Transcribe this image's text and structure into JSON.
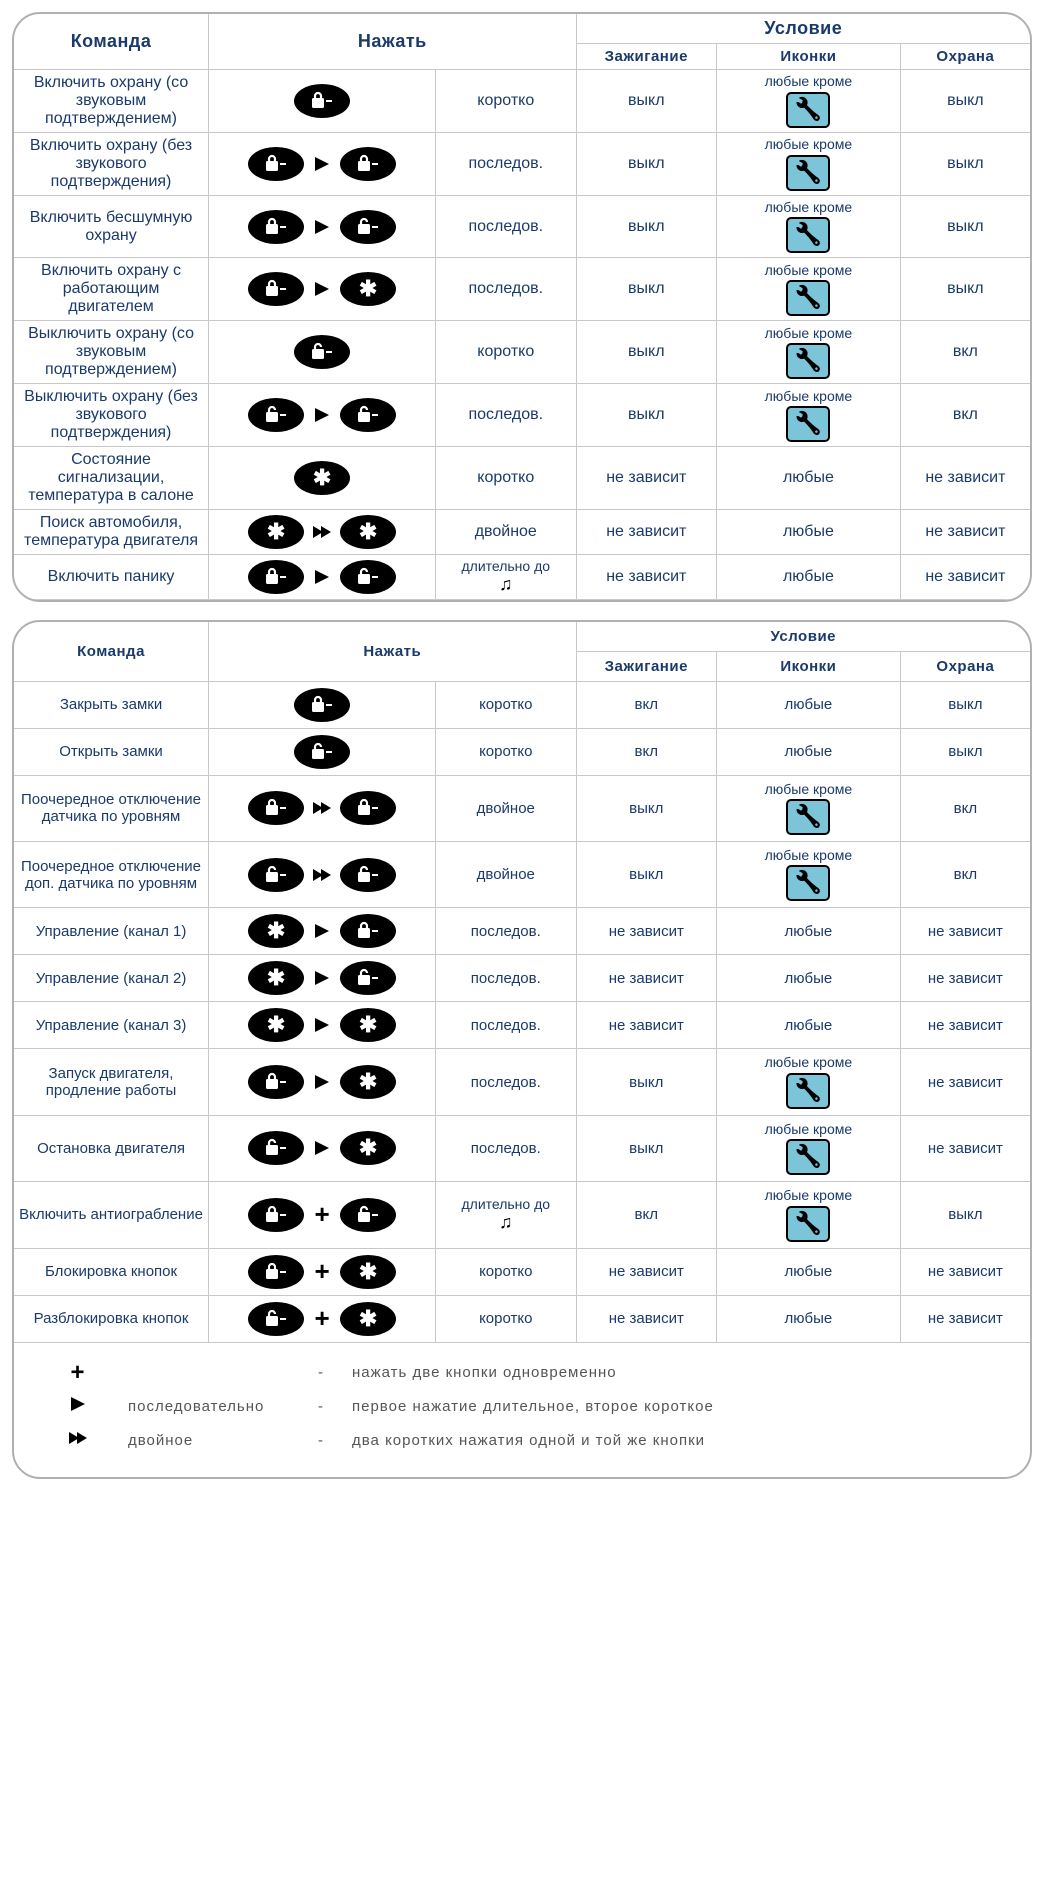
{
  "colors": {
    "border": "#b0b0b0",
    "grid": "#c8c8c8",
    "text": "#1a3a6a",
    "badge_bg": "#7cc5d9",
    "badge_border": "#000000"
  },
  "headers": {
    "command": "Команда",
    "press": "Нажать",
    "condition": "Условие",
    "ignition": "Зажигание",
    "icons": "Иконки",
    "guard": "Охрана"
  },
  "glyphs": {
    "lock": "⊡",
    "unlock": "🔓",
    "star": "✱",
    "plus": "+",
    "note": "♫"
  },
  "table1": {
    "rows": [
      {
        "command": "Включить охрану (со звуковым подтверждением)",
        "buttons": [
          {
            "g": "lock"
          }
        ],
        "sep": null,
        "duration": "коротко",
        "ignition": "выкл",
        "icons": "any_except_wrench",
        "guard": "выкл"
      },
      {
        "command": "Включить охрану (без звукового подтверждения)",
        "buttons": [
          {
            "g": "lock"
          },
          {
            "g": "lock"
          }
        ],
        "sep": "seq",
        "duration": "последов.",
        "ignition": "выкл",
        "icons": "any_except_wrench",
        "guard": "выкл"
      },
      {
        "command": "Включить бесшумную охрану",
        "buttons": [
          {
            "g": "lock"
          },
          {
            "g": "unlock"
          }
        ],
        "sep": "seq",
        "duration": "последов.",
        "ignition": "выкл",
        "icons": "any_except_wrench",
        "guard": "выкл"
      },
      {
        "command": "Включить охрану с работающим двигателем",
        "buttons": [
          {
            "g": "lock"
          },
          {
            "g": "star"
          }
        ],
        "sep": "seq",
        "duration": "последов.",
        "ignition": "выкл",
        "icons": "any_except_wrench",
        "guard": "выкл"
      },
      {
        "command": "Выключить охрану (со звуковым подтверждением)",
        "buttons": [
          {
            "g": "unlock"
          }
        ],
        "sep": null,
        "duration": "коротко",
        "ignition": "выкл",
        "icons": "any_except_wrench",
        "guard": "вкл"
      },
      {
        "command": "Выключить охрану (без звукового подтверждения)",
        "buttons": [
          {
            "g": "unlock"
          },
          {
            "g": "unlock"
          }
        ],
        "sep": "seq",
        "duration": "последов.",
        "ignition": "выкл",
        "icons": "any_except_wrench",
        "guard": "вкл"
      },
      {
        "command": "Состояние сигнализации, температура в салоне",
        "buttons": [
          {
            "g": "star"
          }
        ],
        "sep": null,
        "duration": "коротко",
        "ignition": "не зависит",
        "icons": "any",
        "guard": "не зависит"
      },
      {
        "command": "Поиск автомобиля, температура двигателя",
        "buttons": [
          {
            "g": "star"
          },
          {
            "g": "star"
          }
        ],
        "sep": "dbl",
        "duration": "двойное",
        "ignition": "не зависит",
        "icons": "any",
        "guard": "не зависит"
      },
      {
        "command": "Включить панику",
        "buttons": [
          {
            "g": "lock"
          },
          {
            "g": "unlock"
          }
        ],
        "sep": "seq",
        "duration": "long_until_note",
        "ignition": "не зависит",
        "icons": "any",
        "guard": "не зависит"
      }
    ]
  },
  "table2": {
    "rows": [
      {
        "command": "Закрыть замки",
        "buttons": [
          {
            "g": "lock"
          }
        ],
        "sep": null,
        "duration": "коротко",
        "ignition": "вкл",
        "icons": "any",
        "guard": "выкл"
      },
      {
        "command": "Открыть замки",
        "buttons": [
          {
            "g": "unlock"
          }
        ],
        "sep": null,
        "duration": "коротко",
        "ignition": "вкл",
        "icons": "any",
        "guard": "выкл"
      },
      {
        "command": "Поочередное отключение датчика по уровням",
        "buttons": [
          {
            "g": "lock"
          },
          {
            "g": "lock"
          }
        ],
        "sep": "dbl",
        "duration": "двойное",
        "ignition": "выкл",
        "icons": "any_except_wrench",
        "guard": "вкл"
      },
      {
        "command": "Поочередное отключение доп. датчика по уровням",
        "buttons": [
          {
            "g": "unlock"
          },
          {
            "g": "unlock"
          }
        ],
        "sep": "dbl",
        "duration": "двойное",
        "ignition": "выкл",
        "icons": "any_except_wrench",
        "guard": "вкл"
      },
      {
        "command": "Управление (канал 1)",
        "buttons": [
          {
            "g": "star"
          },
          {
            "g": "lock"
          }
        ],
        "sep": "seq",
        "duration": "последов.",
        "ignition": "не зависит",
        "icons": "any",
        "guard": "не зависит"
      },
      {
        "command": "Управление (канал 2)",
        "buttons": [
          {
            "g": "star"
          },
          {
            "g": "unlock"
          }
        ],
        "sep": "seq",
        "duration": "последов.",
        "ignition": "не зависит",
        "icons": "any",
        "guard": "не зависит"
      },
      {
        "command": "Управление (канал 3)",
        "buttons": [
          {
            "g": "star"
          },
          {
            "g": "star"
          }
        ],
        "sep": "seq",
        "duration": "последов.",
        "ignition": "не зависит",
        "icons": "any",
        "guard": "не зависит"
      },
      {
        "command": "Запуск двигателя, продление работы",
        "buttons": [
          {
            "g": "lock"
          },
          {
            "g": "star"
          }
        ],
        "sep": "seq",
        "duration": "последов.",
        "ignition": "выкл",
        "icons": "any_except_wrench",
        "guard": "не зависит"
      },
      {
        "command": "Остановка двигателя",
        "buttons": [
          {
            "g": "unlock"
          },
          {
            "g": "star"
          }
        ],
        "sep": "seq",
        "duration": "последов.",
        "ignition": "выкл",
        "icons": "any_except_wrench",
        "guard": "не зависит"
      },
      {
        "command": "Включить антиограбление",
        "buttons": [
          {
            "g": "lock"
          },
          {
            "g": "unlock"
          }
        ],
        "sep": "plus",
        "duration": "long_until_note",
        "ignition": "вкл",
        "icons": "any_except_wrench",
        "guard": "выкл"
      },
      {
        "command": "Блокировка кнопок",
        "buttons": [
          {
            "g": "lock"
          },
          {
            "g": "star"
          }
        ],
        "sep": "plus",
        "duration": "коротко",
        "ignition": "не зависит",
        "icons": "any",
        "guard": "не зависит"
      },
      {
        "command": "Разблокировка кнопок",
        "buttons": [
          {
            "g": "unlock"
          },
          {
            "g": "star"
          }
        ],
        "sep": "plus",
        "duration": "коротко",
        "ignition": "не зависит",
        "icons": "any",
        "guard": "не зависит"
      }
    ]
  },
  "strings": {
    "any_except": "любые кроме",
    "any": "любые",
    "long_until": "длительно до"
  },
  "legend": {
    "rows": [
      {
        "sym": "plus",
        "term": "",
        "dash": "-",
        "desc": "нажать две кнопки одновременно"
      },
      {
        "sym": "seq",
        "term": "последовательно",
        "dash": "-",
        "desc": "первое нажатие длительное, второе короткое"
      },
      {
        "sym": "dbl",
        "term": "двойное",
        "dash": "-",
        "desc": "два коротких нажатия одной и той же кнопки"
      }
    ]
  }
}
